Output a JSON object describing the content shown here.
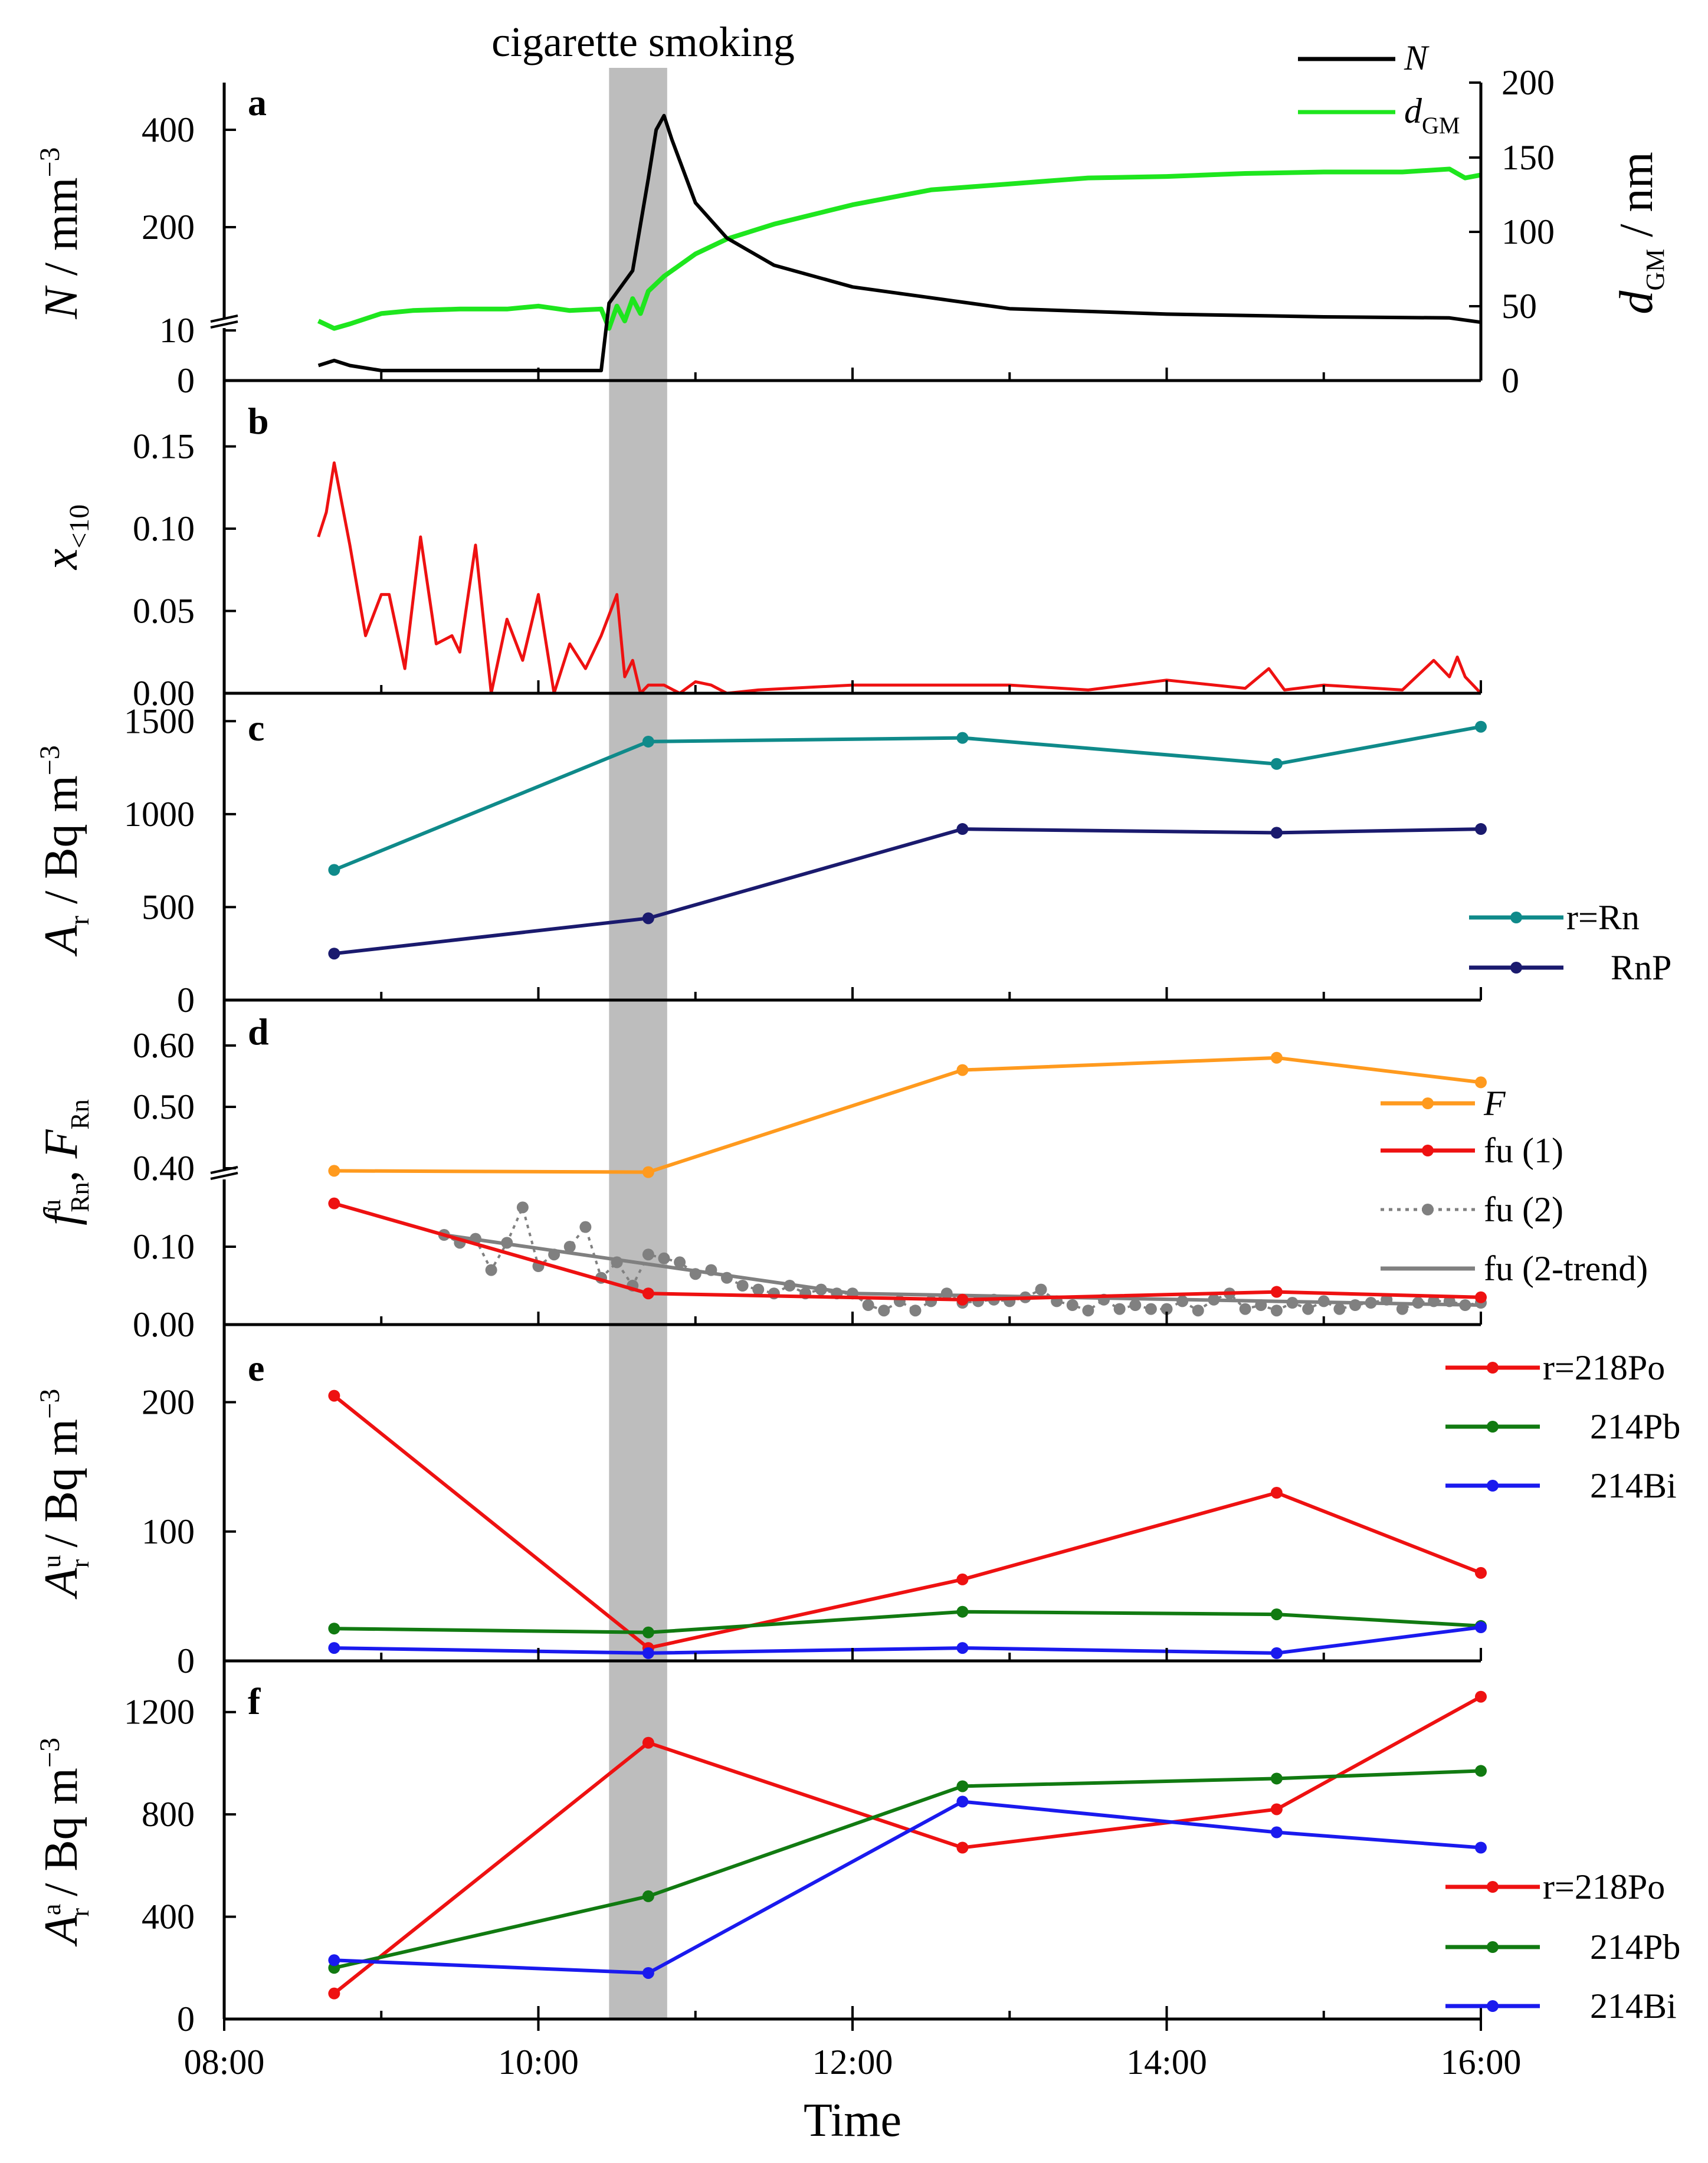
{
  "figure": {
    "shade_label": "cigarette smoking",
    "shade_range": [
      10.45,
      10.82
    ],
    "x_axis": {
      "label": "Time",
      "ticks": [
        "08:00",
        "10:00",
        "12:00",
        "14:00",
        "16:00"
      ],
      "range": [
        8,
        16
      ]
    }
  },
  "colors": {
    "black": "#000000",
    "green": "#1ee61e",
    "red": "#ee1111",
    "teal": "#0f8a8a",
    "navy": "#1a1a6e",
    "orange": "#ff9a1e",
    "gray": "#808080",
    "dgreen": "#117a11",
    "blue": "#1a1aee",
    "shade": "#bdbdbd"
  },
  "chart_data": [
    {
      "id": "a",
      "panel_label": "a",
      "type": "line",
      "ylabel": "N / mm⁻³",
      "ylabel_right": "dGM / nm",
      "yticks_left": [
        "0",
        "10",
        "200",
        "400"
      ],
      "yticks_right": [
        "0",
        "50",
        "100",
        "150",
        "200"
      ],
      "broken_axis": true,
      "series": [
        {
          "name": "N",
          "legend": "N",
          "color": "#000000",
          "axis": "left",
          "x": [
            8.6,
            8.7,
            8.8,
            9.0,
            9.5,
            10.0,
            10.2,
            10.4,
            10.45,
            10.55,
            10.6,
            10.7,
            10.75,
            10.8,
            10.85,
            11.0,
            11.2,
            11.5,
            12.0,
            12.5,
            13.0,
            14.0,
            15.0,
            15.8,
            16.0
          ],
          "y": [
            3,
            4,
            3,
            2,
            2,
            2,
            2,
            2,
            60,
            100,
            120,
            300,
            400,
            430,
            380,
            250,
            180,
            130,
            90,
            70,
            50,
            40,
            35,
            33,
            25
          ]
        },
        {
          "name": "dGM",
          "legend": "dGM",
          "color": "#1ee61e",
          "axis": "right",
          "x": [
            8.6,
            8.7,
            8.8,
            9.0,
            9.2,
            9.5,
            9.8,
            10.0,
            10.2,
            10.4,
            10.45,
            10.5,
            10.55,
            10.6,
            10.65,
            10.7,
            10.8,
            11.0,
            11.2,
            11.5,
            12.0,
            12.5,
            13.0,
            13.5,
            14.0,
            14.5,
            15.0,
            15.5,
            15.8,
            15.9,
            16.0
          ],
          "y": [
            40,
            35,
            38,
            45,
            47,
            48,
            48,
            50,
            47,
            48,
            35,
            50,
            40,
            55,
            45,
            60,
            70,
            85,
            95,
            105,
            118,
            128,
            132,
            136,
            137,
            139,
            140,
            140,
            142,
            136,
            138
          ]
        }
      ]
    },
    {
      "id": "b",
      "panel_label": "b",
      "type": "line",
      "ylabel": "x<10",
      "yticks": [
        "0.00",
        "0.05",
        "0.10",
        "0.15"
      ],
      "ylim": [
        0,
        0.19
      ],
      "series": [
        {
          "name": "x<10",
          "color": "#ee1111",
          "x": [
            8.6,
            8.65,
            8.7,
            8.8,
            8.9,
            9.0,
            9.05,
            9.15,
            9.25,
            9.35,
            9.45,
            9.5,
            9.6,
            9.7,
            9.8,
            9.9,
            10.0,
            10.1,
            10.2,
            10.3,
            10.4,
            10.5,
            10.55,
            10.6,
            10.65,
            10.7,
            10.8,
            10.9,
            11.0,
            11.1,
            11.2,
            11.4,
            12.0,
            13.0,
            13.5,
            14.0,
            14.5,
            14.65,
            14.75,
            15.0,
            15.5,
            15.7,
            15.8,
            15.85,
            15.9,
            16.0
          ],
          "y": [
            0.095,
            0.11,
            0.14,
            0.09,
            0.035,
            0.06,
            0.06,
            0.015,
            0.095,
            0.03,
            0.035,
            0.025,
            0.09,
            0.0,
            0.045,
            0.02,
            0.06,
            0.0,
            0.03,
            0.015,
            0.035,
            0.06,
            0.01,
            0.02,
            0.0,
            0.005,
            0.005,
            0.0,
            0.007,
            0.005,
            0.0,
            0.002,
            0.005,
            0.005,
            0.002,
            0.008,
            0.003,
            0.015,
            0.002,
            0.005,
            0.002,
            0.02,
            0.01,
            0.022,
            0.01,
            0.0
          ]
        }
      ]
    },
    {
      "id": "c",
      "panel_label": "c",
      "type": "line",
      "ylabel": "Ar / Bq m⁻³",
      "yticks": [
        "0",
        "500",
        "1000",
        "1500"
      ],
      "ylim": [
        0,
        1650
      ],
      "series": [
        {
          "name": "Rn",
          "legend": "r=Rn",
          "color": "#0f8a8a",
          "x": [
            8.7,
            10.7,
            12.7,
            14.7,
            16.0
          ],
          "y": [
            700,
            1390,
            1410,
            1270,
            1470
          ]
        },
        {
          "name": "RnP",
          "legend": "RnP",
          "color": "#1a1a6e",
          "x": [
            8.7,
            10.7,
            12.7,
            14.7,
            16.0
          ],
          "y": [
            250,
            440,
            920,
            900,
            920
          ]
        }
      ]
    },
    {
      "id": "d",
      "panel_label": "d",
      "type": "line",
      "ylabel": "fuRn, FRn",
      "yticks": [
        "0.00",
        "0.10",
        "0.40",
        "0.50",
        "0.60"
      ],
      "broken_axis": true,
      "series": [
        {
          "name": "F",
          "legend": "F",
          "color": "#ff9a1e",
          "x": [
            8.7,
            10.7,
            12.7,
            14.7,
            16.0
          ],
          "y": [
            0.38,
            0.37,
            0.56,
            0.58,
            0.54
          ]
        },
        {
          "name": "fu(1)",
          "legend": "fu (1)",
          "color": "#ee1111",
          "x": [
            8.7,
            10.7,
            12.7,
            14.7,
            16.0
          ],
          "y": [
            0.155,
            0.04,
            0.032,
            0.042,
            0.035
          ]
        },
        {
          "name": "fu(2)",
          "legend": "fu (2)",
          "color": "#808080",
          "x": [
            9.4,
            9.5,
            9.6,
            9.7,
            9.8,
            9.9,
            10.0,
            10.1,
            10.2,
            10.3,
            10.4,
            10.5,
            10.6,
            10.7,
            10.8,
            10.9,
            11.0,
            11.1,
            11.2,
            11.3,
            11.4,
            11.5,
            11.6,
            11.7,
            11.8,
            11.9,
            12.0,
            12.1,
            12.2,
            12.3,
            12.4,
            12.5,
            12.6,
            12.7,
            12.8,
            12.9,
            13.0,
            13.1,
            13.2,
            13.3,
            13.4,
            13.5,
            13.6,
            13.7,
            13.8,
            13.9,
            14.0,
            14.1,
            14.2,
            14.3,
            14.4,
            14.5,
            14.6,
            14.7,
            14.8,
            14.9,
            15.0,
            15.1,
            15.2,
            15.3,
            15.4,
            15.5,
            15.6,
            15.7,
            15.8,
            15.9,
            16.0
          ],
          "y": [
            0.115,
            0.105,
            0.11,
            0.07,
            0.105,
            0.15,
            0.075,
            0.09,
            0.1,
            0.125,
            0.06,
            0.08,
            0.05,
            0.09,
            0.085,
            0.08,
            0.065,
            0.07,
            0.06,
            0.05,
            0.045,
            0.04,
            0.05,
            0.04,
            0.045,
            0.04,
            0.04,
            0.025,
            0.018,
            0.03,
            0.018,
            0.03,
            0.04,
            0.028,
            0.03,
            0.032,
            0.03,
            0.035,
            0.045,
            0.03,
            0.025,
            0.018,
            0.032,
            0.02,
            0.025,
            0.02,
            0.02,
            0.03,
            0.018,
            0.032,
            0.04,
            0.02,
            0.025,
            0.018,
            0.028,
            0.02,
            0.03,
            0.02,
            0.025,
            0.028,
            0.032,
            0.02,
            0.028,
            0.03,
            0.03,
            0.025,
            0.028
          ]
        },
        {
          "name": "fu(2-trend)",
          "legend": "fu (2-trend)",
          "color": "#808080",
          "x": [
            9.4,
            12.0,
            16.0
          ],
          "y": [
            0.115,
            0.04,
            0.025
          ]
        }
      ]
    },
    {
      "id": "e",
      "panel_label": "e",
      "type": "line",
      "ylabel": "Aur / Bq m⁻³",
      "yticks": [
        "0",
        "100",
        "200"
      ],
      "ylim": [
        0,
        260
      ],
      "series": [
        {
          "name": "218Po",
          "legend": "r=218Po",
          "color": "#ee1111",
          "x": [
            8.7,
            10.7,
            12.7,
            14.7,
            16.0
          ],
          "y": [
            205,
            10,
            63,
            130,
            68
          ]
        },
        {
          "name": "214Pb",
          "legend": "214Pb",
          "color": "#117a11",
          "x": [
            8.7,
            10.7,
            12.7,
            14.7,
            16.0
          ],
          "y": [
            25,
            22,
            38,
            36,
            27
          ]
        },
        {
          "name": "214Bi",
          "legend": "214Bi",
          "color": "#1a1aee",
          "x": [
            8.7,
            10.7,
            12.7,
            14.7,
            16.0
          ],
          "y": [
            10,
            6,
            10,
            6,
            26
          ]
        }
      ]
    },
    {
      "id": "f",
      "panel_label": "f",
      "type": "line",
      "ylabel": "Aar / Bq m⁻³",
      "yticks": [
        "0",
        "400",
        "800",
        "1200"
      ],
      "ylim": [
        0,
        1400
      ],
      "series": [
        {
          "name": "218Po",
          "legend": "r=218Po",
          "color": "#ee1111",
          "x": [
            8.7,
            10.7,
            12.7,
            14.7,
            16.0
          ],
          "y": [
            100,
            1080,
            670,
            820,
            1260
          ]
        },
        {
          "name": "214Pb",
          "legend": "214Pb",
          "color": "#117a11",
          "x": [
            8.7,
            10.7,
            12.7,
            14.7,
            16.0
          ],
          "y": [
            200,
            480,
            910,
            940,
            970
          ]
        },
        {
          "name": "214Bi",
          "legend": "214Bi",
          "color": "#1a1aee",
          "x": [
            8.7,
            10.7,
            12.7,
            14.7,
            16.0
          ],
          "y": [
            230,
            180,
            850,
            730,
            670
          ]
        }
      ]
    }
  ]
}
